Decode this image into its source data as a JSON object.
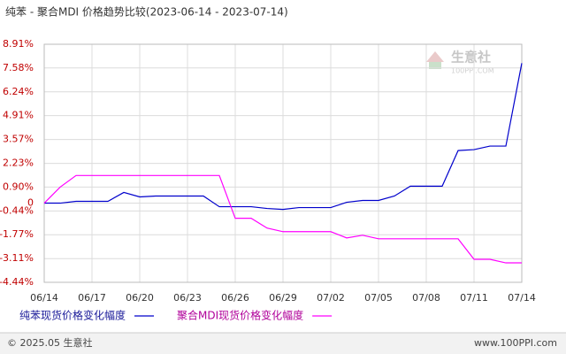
{
  "chart_data": {
    "type": "line",
    "title": "纯苯 - 聚合MDI 价格趋势比较(2023-06-14 - 2023-07-14)",
    "categories": [
      "06/14",
      null,
      null,
      "06/17",
      null,
      null,
      "06/20",
      null,
      null,
      "06/23",
      null,
      null,
      "06/26",
      null,
      null,
      "06/29",
      null,
      null,
      "07/02",
      null,
      null,
      "07/05",
      null,
      null,
      "07/08",
      null,
      null,
      "07/11",
      null,
      null,
      "07/14"
    ],
    "series": [
      {
        "name": "纯苯现货价格变化幅度",
        "color": "#0000cc",
        "values": [
          0,
          0,
          0.1,
          0.1,
          0.1,
          0.6,
          0.35,
          0.4,
          0.4,
          0.4,
          0.4,
          -0.2,
          -0.2,
          -0.2,
          -0.3,
          -0.35,
          -0.25,
          -0.25,
          -0.25,
          0.05,
          0.15,
          0.15,
          0.4,
          0.95,
          0.95,
          0.95,
          2.95,
          3.0,
          3.2,
          3.2,
          7.85
        ]
      },
      {
        "name": "聚合MDI现货价格变化幅度",
        "color": "#ff00ff",
        "values": [
          0,
          0.9,
          1.55,
          1.55,
          1.55,
          1.55,
          1.55,
          1.55,
          1.55,
          1.55,
          1.55,
          1.55,
          -0.85,
          -0.85,
          -1.4,
          -1.6,
          -1.6,
          -1.6,
          -1.6,
          -1.95,
          -1.8,
          -2.0,
          -2.0,
          -2.0,
          -2.0,
          -2.0,
          -2.0,
          -3.15,
          -3.15,
          -3.35,
          -3.35
        ]
      }
    ],
    "ylim": [
      -4.44,
      8.91
    ],
    "yticks": [
      {
        "value": 8.91,
        "label": "8.91%"
      },
      {
        "value": 7.58,
        "label": "7.58%"
      },
      {
        "value": 6.24,
        "label": "6.24%"
      },
      {
        "value": 4.91,
        "label": "4.91%"
      },
      {
        "value": 3.57,
        "label": "3.57%"
      },
      {
        "value": 2.23,
        "label": "2.23%"
      },
      {
        "value": 0.9,
        "label": "0.90%"
      },
      0,
      {
        "value": -0.44,
        "label": "-0.44%"
      },
      {
        "value": -1.77,
        "label": "-1.77%"
      },
      {
        "value": -3.11,
        "label": "-3.11%"
      },
      {
        "value": -4.44,
        "label": "-4.44%"
      }
    ],
    "grid": true
  },
  "watermark": {
    "name": "生意社",
    "url": "100PPI.COM"
  },
  "footer": {
    "copyright": "© 2025.05 生意社",
    "site": "www.100PPI.com"
  }
}
